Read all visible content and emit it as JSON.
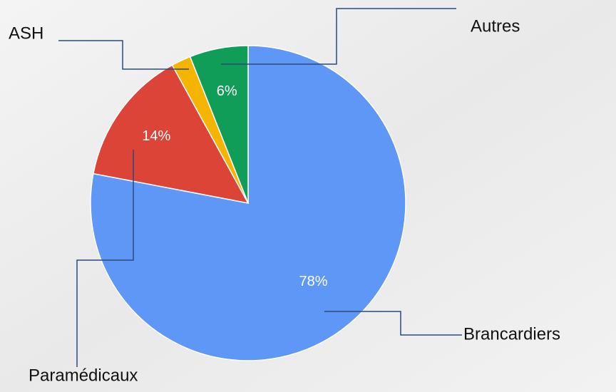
{
  "chart_data": {
    "type": "pie",
    "categories": [
      "Brancardiers",
      "Paramédicaux",
      "ASH",
      "Autres"
    ],
    "values": [
      78,
      14,
      2,
      6
    ],
    "value_labels": [
      "78%",
      "14%",
      null,
      "6%"
    ],
    "colors": [
      "#5e97f6",
      "#db4437",
      "#f4b400",
      "#0f9d58"
    ]
  }
}
